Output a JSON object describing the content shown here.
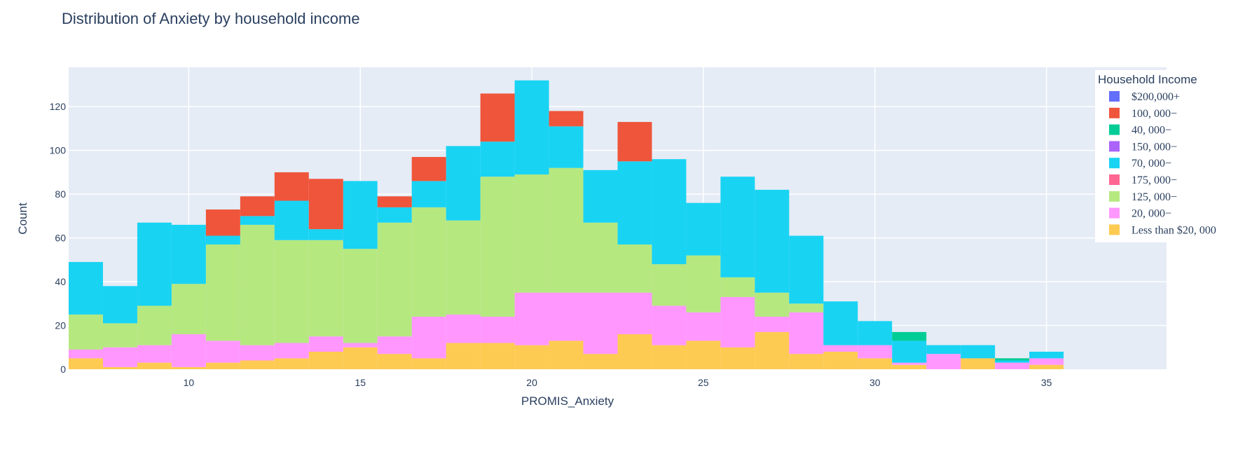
{
  "chart_data": {
    "type": "bar",
    "barmode": "stack",
    "title": "Distribution of Anxiety by household income",
    "xlabel": "PROMIS_Anxiety",
    "ylabel": "Count",
    "xlim": [
      6.5,
      38.5
    ],
    "ylim": [
      0,
      138
    ],
    "x_ticks": [
      10,
      15,
      20,
      25,
      30,
      35
    ],
    "y_ticks": [
      0,
      20,
      40,
      60,
      80,
      100,
      120
    ],
    "grid": true,
    "bin_width": 1,
    "legend_title": "Household Income",
    "legend_position": "top-right",
    "bins": [
      7,
      8,
      9,
      10,
      11,
      12,
      13,
      14,
      15,
      16,
      17,
      18,
      19,
      20,
      21,
      22,
      23,
      24,
      25,
      26,
      27,
      28,
      29,
      30,
      31,
      32,
      33,
      34,
      35
    ],
    "series": [
      {
        "name": "Less than $20, 000",
        "color": "#FECB52",
        "values": [
          5,
          1,
          3,
          1,
          3,
          4,
          5,
          8,
          10,
          7,
          5,
          12,
          12,
          11,
          13,
          7,
          16,
          11,
          13,
          10,
          17,
          7,
          8,
          5,
          2,
          0,
          5,
          0,
          2
        ]
      },
      {
        "name": "20, 000−",
        "color": "#FF97FF",
        "values": [
          4,
          9,
          8,
          15,
          10,
          7,
          7,
          7,
          2,
          8,
          19,
          13,
          12,
          24,
          22,
          28,
          19,
          18,
          13,
          23,
          7,
          19,
          3,
          6,
          1,
          7,
          0,
          3,
          3
        ]
      },
      {
        "name": "125, 000−",
        "color": "#B6E880",
        "values": [
          16,
          11,
          18,
          23,
          44,
          55,
          47,
          44,
          43,
          52,
          50,
          43,
          64,
          54,
          57,
          32,
          22,
          19,
          26,
          9,
          11,
          4,
          0,
          0,
          0,
          0,
          0,
          0,
          0
        ]
      },
      {
        "name": "175, 000−",
        "color": "#FF6692",
        "values": [
          0,
          0,
          0,
          0,
          0,
          0,
          0,
          0,
          0,
          0,
          0,
          0,
          0,
          0,
          0,
          0,
          0,
          0,
          0,
          0,
          0,
          0,
          0,
          0,
          0,
          0,
          0,
          0,
          0
        ]
      },
      {
        "name": "70, 000−",
        "color": "#19D3F3",
        "values": [
          24,
          17,
          38,
          27,
          4,
          4,
          18,
          5,
          31,
          7,
          12,
          34,
          16,
          43,
          19,
          24,
          38,
          48,
          24,
          46,
          47,
          31,
          20,
          11,
          10,
          4,
          6,
          1,
          3
        ]
      },
      {
        "name": "150, 000−",
        "color": "#AB63FA",
        "values": [
          0,
          0,
          0,
          0,
          0,
          0,
          0,
          0,
          0,
          0,
          0,
          0,
          0,
          0,
          0,
          0,
          0,
          0,
          0,
          0,
          0,
          0,
          0,
          0,
          0,
          0,
          0,
          0,
          0
        ]
      },
      {
        "name": "40, 000−",
        "color": "#00CC96",
        "values": [
          0,
          0,
          0,
          0,
          0,
          0,
          0,
          0,
          0,
          0,
          0,
          0,
          0,
          0,
          0,
          0,
          0,
          0,
          0,
          0,
          0,
          0,
          0,
          0,
          4,
          0,
          0,
          1,
          0
        ]
      },
      {
        "name": "100, 000−",
        "color": "#EF553B",
        "values": [
          0,
          0,
          0,
          0,
          12,
          9,
          13,
          23,
          0,
          5,
          11,
          0,
          22,
          0,
          7,
          0,
          18,
          0,
          0,
          0,
          0,
          0,
          0,
          0,
          0,
          0,
          0,
          0,
          0
        ]
      },
      {
        "name": "$200,000+",
        "color": "#636EFA",
        "values": [
          0,
          0,
          0,
          0,
          0,
          0,
          0,
          0,
          0,
          0,
          0,
          0,
          0,
          0,
          0,
          0,
          0,
          0,
          0,
          0,
          0,
          0,
          0,
          0,
          0,
          0,
          0,
          0,
          0
        ]
      }
    ],
    "legend_order": [
      "$200,000+",
      "100, 000−",
      "40, 000−",
      "150, 000−",
      "70, 000−",
      "175, 000−",
      "125, 000−",
      "20, 000−",
      "Less than $20, 000"
    ]
  }
}
